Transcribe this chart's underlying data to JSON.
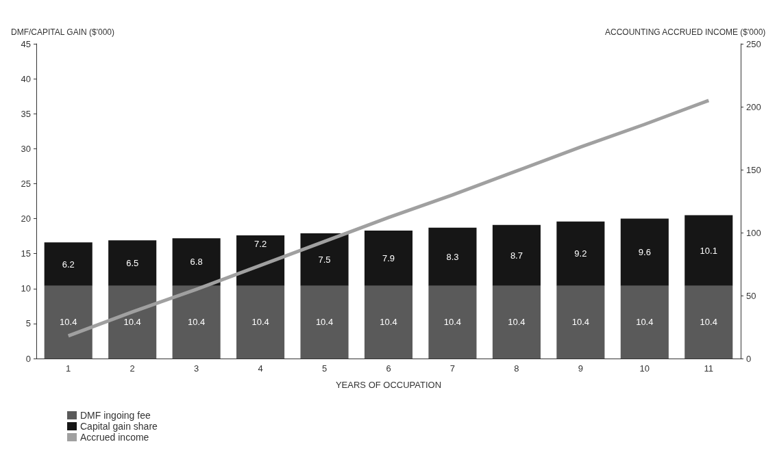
{
  "chart_data": {
    "type": "bar",
    "stacked": true,
    "xlabel": "YEARS OF OCCUPATION",
    "ylabel": "DMF/CAPITAL GAIN ($'000)",
    "y2label": "ACCOUNTING ACCRUED INCOME ($'000)",
    "categories": [
      "1",
      "2",
      "3",
      "4",
      "5",
      "6",
      "7",
      "8",
      "9",
      "10",
      "11"
    ],
    "series": [
      {
        "name": "DMF ingoing fee",
        "color": "#5a5a5a",
        "values": [
          10.4,
          10.4,
          10.4,
          10.4,
          10.4,
          10.4,
          10.4,
          10.4,
          10.4,
          10.4,
          10.4
        ],
        "value_labels": [
          "10.4",
          "10.4",
          "10.4",
          "10.4",
          "10.4",
          "10.4",
          "10.4",
          "10.4",
          "10.4",
          "10.4",
          "10.4"
        ]
      },
      {
        "name": "Capital gain share",
        "color": "#161616",
        "values": [
          6.2,
          6.5,
          6.8,
          7.2,
          7.5,
          7.9,
          8.3,
          8.7,
          9.2,
          9.6,
          10.1
        ],
        "value_labels": [
          "6.2",
          "6.5",
          "6.8",
          "7.2",
          "7.5",
          "7.9",
          "8.3",
          "8.7",
          "9.2",
          "9.6",
          "10.1"
        ]
      },
      {
        "name": "Accrued income",
        "type": "line",
        "axis": "y2",
        "color": "#a0a0a0",
        "values": [
          18,
          37,
          55,
          74,
          93,
          112,
          130,
          149,
          168,
          186,
          205
        ]
      }
    ],
    "ylim": [
      0,
      45
    ],
    "yticks": [
      0,
      5,
      10,
      15,
      20,
      25,
      30,
      35,
      40,
      45
    ],
    "y2lim": [
      0,
      250
    ],
    "y2ticks": [
      0,
      50,
      100,
      150,
      200,
      250
    ],
    "legend": "bottom left",
    "grid": false
  }
}
